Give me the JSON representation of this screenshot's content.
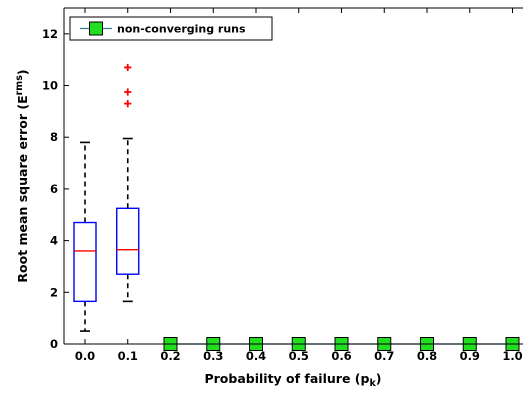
{
  "chart_data": {
    "type": "box",
    "xlabel": "Probability of failure",
    "xlabel_sub": "k",
    "xlabel_prefix": "p",
    "ylabel": "Root mean square error",
    "ylabel_base": "E",
    "ylabel_sup": "rms",
    "x_categories": [
      "0.0",
      "0.1",
      "0.2",
      "0.3",
      "0.4",
      "0.5",
      "0.6",
      "0.7",
      "0.8",
      "0.9",
      "1.0"
    ],
    "ylim": [
      0,
      13
    ],
    "yticks": [
      0,
      2,
      4,
      6,
      8,
      10,
      12
    ],
    "ytick_labels": [
      "0",
      "2",
      "4",
      "6",
      "8",
      "10",
      "12"
    ],
    "boxes": [
      {
        "category": "0.0",
        "whisker_low": 0.5,
        "q1": 1.65,
        "median": 3.6,
        "q3": 4.7,
        "whisker_high": 7.8,
        "outliers": []
      },
      {
        "category": "0.1",
        "whisker_low": 1.65,
        "q1": 2.7,
        "median": 3.65,
        "q3": 5.25,
        "whisker_high": 7.95,
        "outliers": [
          9.3,
          9.75,
          10.7
        ]
      }
    ],
    "non_converging": {
      "name": "non-converging runs",
      "x": [
        "0.2",
        "0.3",
        "0.4",
        "0.5",
        "0.6",
        "0.7",
        "0.8",
        "0.9",
        "1.0"
      ],
      "y": [
        0,
        0,
        0,
        0,
        0,
        0,
        0,
        0,
        0
      ]
    },
    "colors": {
      "box": "#0000ff",
      "median": "#ff0000",
      "whisker": "#000000",
      "outlier": "#ff0000",
      "marker_fill": "#22dd22",
      "marker_edge": "#000000",
      "series_line": "#3a7ca5"
    },
    "legend_position": "top-left",
    "grid": false
  }
}
